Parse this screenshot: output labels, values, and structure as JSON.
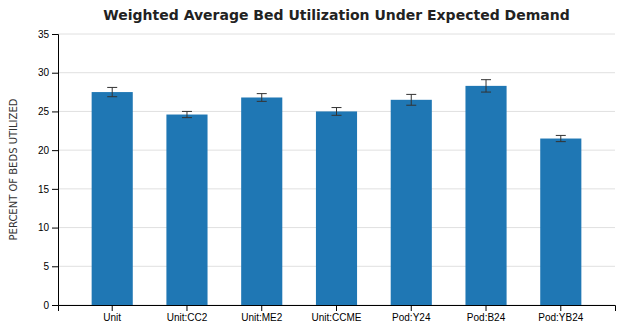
{
  "chart_data": {
    "type": "bar",
    "title": "Weighted Average Bed Utilization Under Expected Demand",
    "ylabel": "PERCENT OF BEDS UTILIZED",
    "categories": [
      "Unit",
      "Unit:CC2",
      "Unit:ME2",
      "Unit:CCME",
      "Pod:Y24",
      "Pod:B24",
      "Pod:YB24"
    ],
    "values": [
      27.5,
      24.6,
      26.8,
      25.0,
      26.5,
      28.3,
      21.5
    ],
    "errors": [
      0.6,
      0.4,
      0.5,
      0.5,
      0.7,
      0.8,
      0.4
    ],
    "ylim": [
      0,
      35
    ],
    "yticks": [
      0,
      5,
      10,
      15,
      20,
      25,
      30,
      35
    ],
    "grid": true
  }
}
